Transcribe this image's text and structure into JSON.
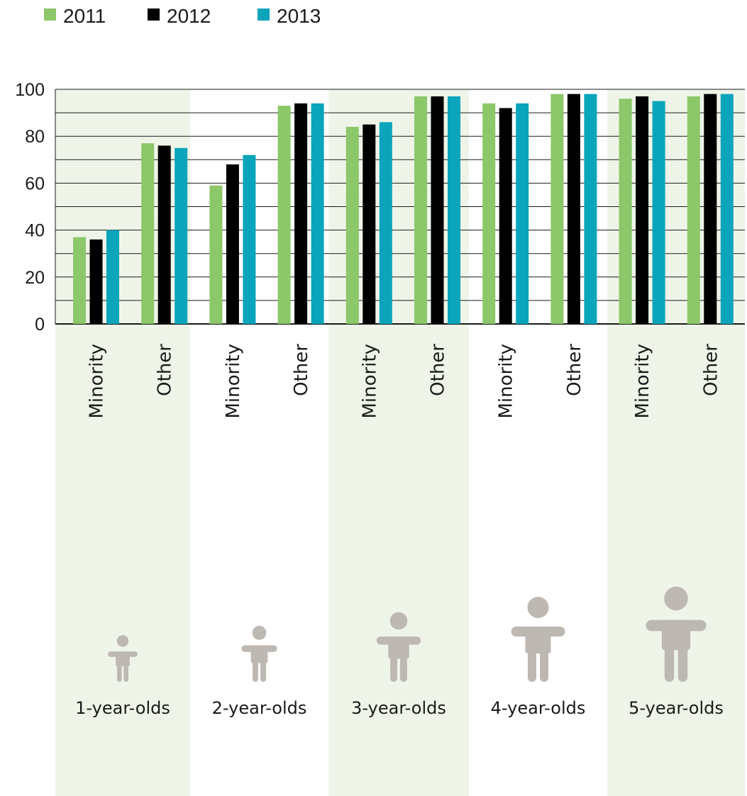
{
  "colors": {
    "series_2011": "#8cc76a",
    "series_2012": "#000000",
    "series_2013": "#0aa5bb",
    "group_band": "#eef5e8",
    "gridline": "#1a1a1a",
    "child_icon": "#beb8b2"
  },
  "legend": [
    "2011",
    "2012",
    "2013"
  ],
  "group_icons": [
    "child-figure-icon",
    "child-figure-icon",
    "child-figure-icon",
    "child-figure-icon",
    "child-figure-icon"
  ],
  "chart_data": {
    "type": "bar",
    "title": "",
    "xlabel": "",
    "ylabel": "",
    "ylim": [
      0,
      100
    ],
    "yticks": [
      0,
      20,
      40,
      60,
      80,
      100
    ],
    "grid": true,
    "legend_position": "top-left",
    "groups": [
      "1-year-olds",
      "2-year-olds",
      "3-year-olds",
      "4-year-olds",
      "5-year-olds"
    ],
    "categories": [
      "Minority",
      "Other",
      "Minority",
      "Other",
      "Minority",
      "Other",
      "Minority",
      "Other",
      "Minority",
      "Other"
    ],
    "series": [
      {
        "name": "2011",
        "values": [
          37,
          77,
          59,
          93,
          84,
          97,
          94,
          98,
          96,
          97
        ]
      },
      {
        "name": "2012",
        "values": [
          36,
          76,
          68,
          94,
          85,
          97,
          92,
          98,
          97,
          98
        ]
      },
      {
        "name": "2013",
        "values": [
          40,
          75,
          72,
          94,
          86,
          97,
          94,
          98,
          95,
          98
        ]
      }
    ]
  }
}
